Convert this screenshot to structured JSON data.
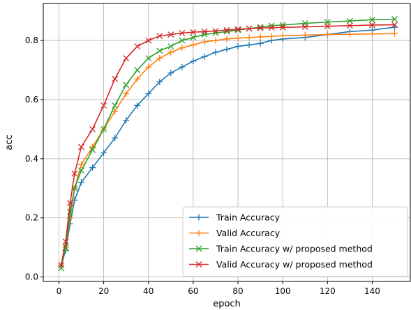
{
  "chart_data": {
    "type": "line",
    "xlabel": "epoch",
    "ylabel": "acc",
    "xlim": [
      -7,
      157
    ],
    "ylim": [
      -0.015,
      0.925
    ],
    "xticks": [
      0,
      20,
      40,
      60,
      80,
      100,
      120,
      140
    ],
    "yticks": [
      0.0,
      0.2,
      0.4,
      0.6,
      0.8
    ],
    "grid": true,
    "legend_position": "lower right",
    "series": [
      {
        "name": "Train Accuracy",
        "color": "#1f77b4",
        "marker": "plus",
        "x": [
          1,
          3,
          5,
          7,
          10,
          15,
          20,
          25,
          30,
          35,
          40,
          45,
          50,
          55,
          60,
          65,
          70,
          75,
          80,
          85,
          90,
          95,
          100,
          110,
          120,
          130,
          140,
          150
        ],
        "y": [
          0.04,
          0.09,
          0.18,
          0.26,
          0.32,
          0.37,
          0.42,
          0.47,
          0.53,
          0.58,
          0.62,
          0.66,
          0.69,
          0.71,
          0.73,
          0.745,
          0.76,
          0.77,
          0.78,
          0.785,
          0.79,
          0.8,
          0.805,
          0.81,
          0.82,
          0.83,
          0.835,
          0.845
        ]
      },
      {
        "name": "Valid Accuracy",
        "color": "#ff7f0e",
        "marker": "plus",
        "x": [
          1,
          3,
          5,
          7,
          10,
          15,
          20,
          25,
          30,
          35,
          40,
          45,
          50,
          55,
          60,
          65,
          70,
          75,
          80,
          85,
          90,
          95,
          100,
          110,
          120,
          130,
          140,
          150
        ],
        "y": [
          0.04,
          0.1,
          0.2,
          0.3,
          0.38,
          0.44,
          0.5,
          0.56,
          0.62,
          0.67,
          0.71,
          0.74,
          0.76,
          0.775,
          0.785,
          0.795,
          0.8,
          0.805,
          0.808,
          0.81,
          0.812,
          0.814,
          0.816,
          0.818,
          0.82,
          0.821,
          0.822,
          0.823
        ]
      },
      {
        "name": "Train Accuracy w/ proposed method",
        "color": "#2ca02c",
        "marker": "x",
        "x": [
          1,
          3,
          5,
          7,
          10,
          15,
          20,
          25,
          30,
          35,
          40,
          45,
          50,
          55,
          60,
          65,
          70,
          75,
          80,
          85,
          90,
          95,
          100,
          110,
          120,
          130,
          140,
          150
        ],
        "y": [
          0.03,
          0.1,
          0.22,
          0.3,
          0.36,
          0.43,
          0.5,
          0.58,
          0.65,
          0.7,
          0.74,
          0.765,
          0.78,
          0.8,
          0.81,
          0.82,
          0.825,
          0.83,
          0.835,
          0.84,
          0.845,
          0.85,
          0.852,
          0.858,
          0.862,
          0.866,
          0.87,
          0.872
        ]
      },
      {
        "name": "Valid Accuracy w/ proposed method",
        "color": "#d62728",
        "marker": "x",
        "x": [
          1,
          3,
          5,
          7,
          10,
          15,
          20,
          25,
          30,
          35,
          40,
          45,
          50,
          55,
          60,
          65,
          70,
          75,
          80,
          85,
          90,
          95,
          100,
          110,
          120,
          130,
          140,
          150
        ],
        "y": [
          0.04,
          0.12,
          0.25,
          0.35,
          0.44,
          0.5,
          0.58,
          0.67,
          0.74,
          0.78,
          0.8,
          0.815,
          0.82,
          0.825,
          0.828,
          0.83,
          0.832,
          0.835,
          0.838,
          0.84,
          0.842,
          0.843,
          0.844,
          0.846,
          0.848,
          0.85,
          0.852,
          0.853
        ]
      }
    ]
  }
}
